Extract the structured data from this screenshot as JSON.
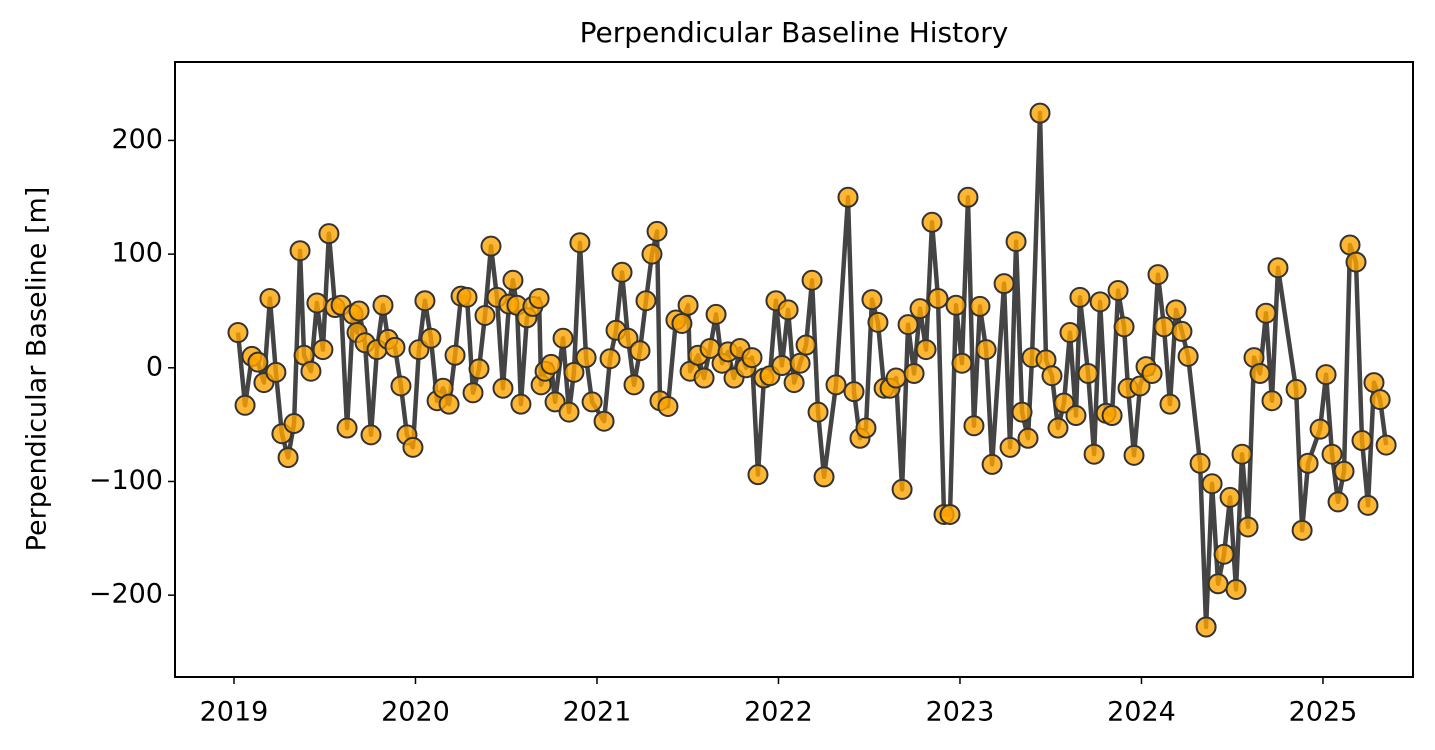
{
  "chart_data": {
    "type": "line",
    "title": "Perpendicular Baseline History",
    "y_label": "Perpendicular Baseline [m]",
    "xlim": [
      2018.675,
      2025.496
    ],
    "xticks": [
      2019,
      2020,
      2021,
      2022,
      2023,
      2024,
      2025
    ],
    "ylim": [
      -272,
      269
    ],
    "yticks": [
      {
        "value": -200,
        "label": "−200"
      },
      {
        "value": -100,
        "label": "−100"
      },
      0,
      100,
      200
    ],
    "x": [
      2019.022,
      2019.061,
      2019.099,
      2019.132,
      2019.165,
      2019.198,
      2019.231,
      2019.264,
      2019.298,
      2019.331,
      2019.364,
      2019.386,
      2019.424,
      2019.457,
      2019.49,
      2019.523,
      2019.557,
      2019.59,
      2019.623,
      2019.656,
      2019.678,
      2019.689,
      2019.722,
      2019.755,
      2019.788,
      2019.821,
      2019.849,
      2019.887,
      2019.92,
      2019.953,
      2019.986,
      2020.019,
      2020.052,
      2020.085,
      2020.119,
      2020.152,
      2020.185,
      2020.218,
      2020.251,
      2020.284,
      2020.317,
      2020.35,
      2020.383,
      2020.416,
      2020.449,
      2020.482,
      2020.515,
      2020.537,
      2020.559,
      2020.581,
      2020.614,
      2020.647,
      2020.681,
      2020.692,
      2020.714,
      2020.747,
      2020.769,
      2020.813,
      2020.846,
      2020.873,
      2020.906,
      2020.94,
      2020.973,
      2021.039,
      2021.072,
      2021.105,
      2021.138,
      2021.171,
      2021.204,
      2021.237,
      2021.27,
      2021.303,
      2021.331,
      2021.347,
      2021.391,
      2021.435,
      2021.468,
      2021.502,
      2021.513,
      2021.557,
      2021.59,
      2021.623,
      2021.656,
      2021.689,
      2021.722,
      2021.755,
      2021.788,
      2021.821,
      2021.854,
      2021.887,
      2021.92,
      2021.953,
      2021.986,
      2022.019,
      2022.053,
      2022.086,
      2022.119,
      2022.152,
      2022.185,
      2022.218,
      2022.251,
      2022.317,
      2022.383,
      2022.416,
      2022.449,
      2022.482,
      2022.515,
      2022.548,
      2022.582,
      2022.615,
      2022.648,
      2022.681,
      2022.714,
      2022.747,
      2022.78,
      2022.813,
      2022.846,
      2022.879,
      2022.912,
      2022.945,
      2022.978,
      2023.011,
      2023.044,
      2023.077,
      2023.11,
      2023.144,
      2023.177,
      2023.243,
      2023.276,
      2023.309,
      2023.342,
      2023.375,
      2023.397,
      2023.441,
      2023.474,
      2023.507,
      2023.54,
      2023.573,
      2023.606,
      2023.639,
      2023.661,
      2023.706,
      2023.739,
      2023.772,
      2023.805,
      2023.838,
      2023.871,
      2023.904,
      2023.926,
      2023.959,
      2023.992,
      2024.025,
      2024.058,
      2024.091,
      2024.124,
      2024.157,
      2024.19,
      2024.223,
      2024.257,
      2024.323,
      2024.356,
      2024.389,
      2024.422,
      2024.455,
      2024.488,
      2024.521,
      2024.554,
      2024.587,
      2024.62,
      2024.653,
      2024.686,
      2024.719,
      2024.752,
      2024.852,
      2024.885,
      2024.918,
      2024.984,
      2025.017,
      2025.05,
      2025.083,
      2025.116,
      2025.149,
      2025.182,
      2025.215,
      2025.248,
      2025.281,
      2025.315,
      2025.348
    ],
    "series": [
      {
        "color": "#444444",
        "marker_color": "#ffa500",
        "values": [
          31,
          -33,
          10,
          5,
          -13,
          61,
          -4,
          -58,
          -79,
          -49,
          103,
          11,
          -3,
          57,
          16,
          118,
          53,
          55,
          -53,
          47,
          31,
          50,
          22,
          -59,
          16,
          55,
          25,
          18,
          -16,
          -59,
          -70,
          16,
          59,
          26,
          -29,
          -18,
          -32,
          11,
          63,
          62,
          -22,
          -1,
          46,
          107,
          62,
          -18,
          56,
          77,
          55,
          -32,
          44,
          54,
          61,
          -15,
          -3,
          3,
          -30,
          26,
          -39,
          -4,
          110,
          9,
          -30,
          -47,
          8,
          33,
          84,
          26,
          -15,
          15,
          59,
          100,
          120,
          -29,
          -34,
          42,
          39,
          55,
          -3,
          11,
          -9,
          17,
          47,
          4,
          14,
          -9,
          17,
          0,
          9,
          -94,
          -9,
          -7,
          59,
          2,
          51,
          -13,
          4,
          20,
          77,
          -39,
          -96,
          -15,
          150,
          -21,
          -62,
          -53,
          60,
          40,
          -18,
          -18,
          -9,
          -107,
          38,
          -5,
          52,
          16,
          128,
          61,
          -129,
          -129,
          55,
          4,
          150,
          -51,
          54,
          16,
          -85,
          74,
          -70,
          111,
          -39,
          -62,
          9,
          224,
          7,
          -7,
          -53,
          -31,
          31,
          -42,
          62,
          -5,
          -76,
          58,
          -40,
          -42,
          68,
          36,
          -18,
          -77,
          -16,
          1,
          -5,
          82,
          36,
          -32,
          51,
          32,
          10,
          -84,
          -228,
          -102,
          -190,
          -164,
          -114,
          -195,
          -76,
          -140,
          9,
          -5,
          48,
          -29,
          88,
          -19,
          -143,
          -84,
          -54,
          -6,
          -76,
          -118,
          -91,
          108,
          93,
          -64,
          -121,
          -13,
          -28,
          -68
        ]
      }
    ]
  }
}
